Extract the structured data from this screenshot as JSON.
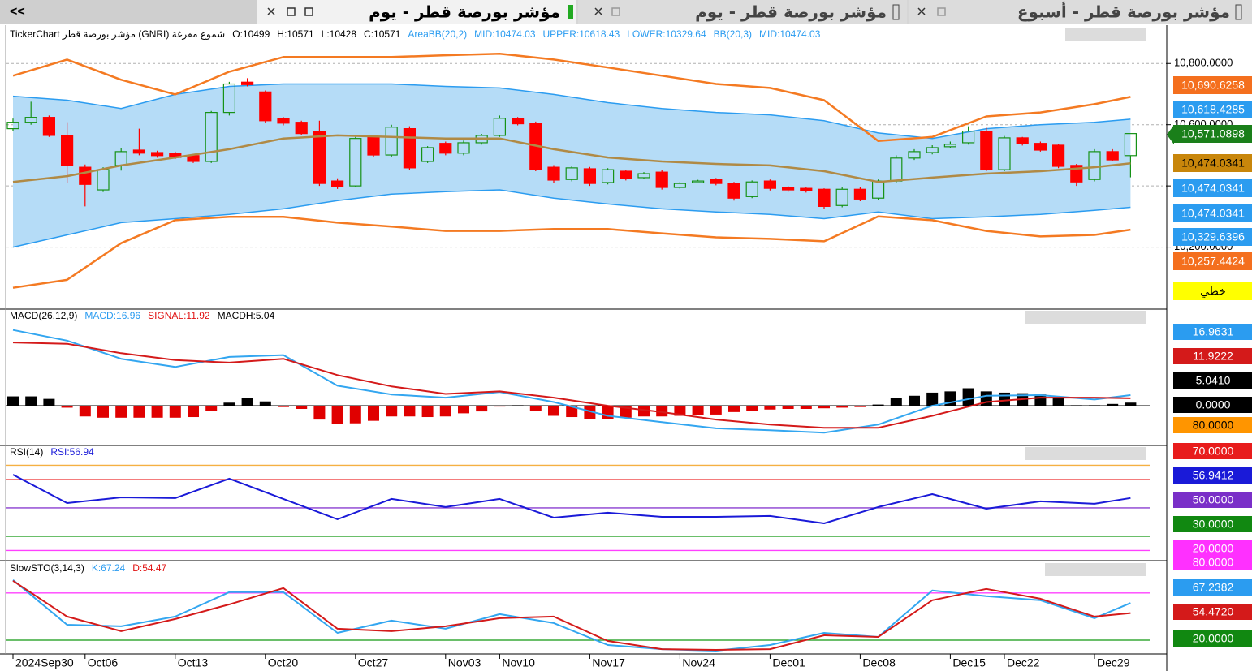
{
  "tabs": [
    "<<",
    "مؤشر بورصة قطر - يوم",
    "مؤشر بورصة قطر - يوم",
    "مؤشر بورصة قطر - أسبوع"
  ],
  "chart_data": [
    {
      "type": "candlestick",
      "legend": [
        {
          "text": "TickerChart مؤشر بورصة قطر (GNRI)  شموع مفرغة",
          "color": "#000000"
        },
        {
          "text": "O:10499",
          "color": "#000000"
        },
        {
          "text": "H:10571",
          "color": "#000000"
        },
        {
          "text": "L:10428",
          "color": "#000000"
        },
        {
          "text": "C:10571",
          "color": "#000000"
        },
        {
          "text": "AreaBB(20,2)",
          "color": "#2b9cf0"
        },
        {
          "text": "MID:10474.03",
          "color": "#2b9cf0"
        },
        {
          "text": "UPPER:10618.43",
          "color": "#2b9cf0"
        },
        {
          "text": "LOWER:10329.64",
          "color": "#2b9cf0"
        },
        {
          "text": "BB(20,3)",
          "color": "#2b9cf0"
        },
        {
          "text": "MID:10474.03",
          "color": "#2b9cf0"
        }
      ],
      "categories": [
        "2024Sep30",
        null,
        null,
        null,
        "Oct06",
        null,
        null,
        null,
        null,
        "Oct13",
        null,
        null,
        null,
        null,
        "Oct20",
        null,
        null,
        null,
        null,
        "Oct27",
        null,
        null,
        null,
        null,
        "Nov03",
        null,
        null,
        "Nov10",
        null,
        null,
        null,
        null,
        "Nov17",
        null,
        null,
        null,
        null,
        "Nov24",
        null,
        null,
        null,
        null,
        "Dec01",
        null,
        null,
        null,
        null,
        "Dec08",
        null,
        null,
        null,
        null,
        "Dec15",
        null,
        null,
        "Dec22",
        null,
        null,
        null,
        null,
        "Dec29",
        null,
        null
      ],
      "open": [
        10587,
        10608,
        10624,
        10565,
        10461,
        10387,
        10467,
        10517,
        10509,
        10507,
        10499,
        10480,
        10640,
        10739,
        10707,
        10619,
        10608,
        10579,
        10416,
        10400,
        10560,
        10501,
        10587,
        10480,
        10539,
        10507,
        10541,
        10565,
        10621,
        10605,
        10461,
        10421,
        10456,
        10411,
        10448,
        10427,
        10445,
        10395,
        10411,
        10421,
        10408,
        10365,
        10416,
        10395,
        10392,
        10389,
        10336,
        10389,
        10360,
        10416,
        10491,
        10509,
        10528,
        10541,
        10579,
        10453,
        10557,
        10539,
        10533,
        10467,
        10421,
        10512,
        10499
      ],
      "high": [
        10620,
        10675,
        10630,
        10608,
        10470,
        10461,
        10525,
        10587,
        10515,
        10512,
        10505,
        10645,
        10740,
        10752,
        10712,
        10625,
        10613,
        10613,
        10425,
        10560,
        10565,
        10600,
        10595,
        10530,
        10545,
        10548,
        10570,
        10630,
        10625,
        10610,
        10468,
        10465,
        10462,
        10458,
        10453,
        10445,
        10453,
        10413,
        10420,
        10426,
        10413,
        10418,
        10421,
        10400,
        10397,
        10392,
        10395,
        10395,
        10421,
        10500,
        10520,
        10533,
        10545,
        10595,
        10590,
        10563,
        10560,
        10545,
        10537,
        10472,
        10520,
        10520,
        10571
      ],
      "low": [
        10580,
        10600,
        10560,
        10410,
        10333,
        10380,
        10450,
        10500,
        10492,
        10488,
        10475,
        10475,
        10630,
        10725,
        10605,
        10598,
        10565,
        10400,
        10390,
        10395,
        10495,
        10495,
        10452,
        10475,
        10500,
        10500,
        10535,
        10560,
        10598,
        10448,
        10410,
        10415,
        10400,
        10405,
        10418,
        10422,
        10388,
        10390,
        10410,
        10402,
        10352,
        10360,
        10385,
        10380,
        10378,
        10325,
        10330,
        10350,
        10355,
        10410,
        10485,
        10503,
        10525,
        10535,
        10448,
        10448,
        10532,
        10512,
        10458,
        10400,
        10415,
        10480,
        10428
      ],
      "close": [
        10608,
        10624,
        10565,
        10467,
        10405,
        10453,
        10512,
        10507,
        10499,
        10493,
        10480,
        10640,
        10733,
        10731,
        10613,
        10605,
        10571,
        10408,
        10397,
        10555,
        10501,
        10592,
        10459,
        10525,
        10507,
        10541,
        10565,
        10621,
        10603,
        10453,
        10419,
        10459,
        10408,
        10453,
        10424,
        10440,
        10395,
        10408,
        10416,
        10408,
        10360,
        10413,
        10392,
        10387,
        10384,
        10333,
        10389,
        10357,
        10416,
        10491,
        10512,
        10525,
        10536,
        10579,
        10453,
        10557,
        10539,
        10517,
        10464,
        10413,
        10512,
        10485,
        10571
      ],
      "up_color": "#169216",
      "down_color": "#ff0000",
      "x": [
        0,
        3,
        6,
        9,
        12,
        15,
        18,
        21,
        24,
        27,
        30,
        33,
        36,
        39,
        42,
        45,
        48,
        51,
        54,
        57,
        60,
        62
      ],
      "area": {
        "color": "#b5dcf7",
        "line_color": "#2b9cf0",
        "upper": [
          10693,
          10680,
          10653,
          10699,
          10725,
          10733,
          10733,
          10733,
          10725,
          10720,
          10699,
          10672,
          10653,
          10640,
          10632,
          10613,
          10573,
          10555,
          10587,
          10600,
          10608,
          10618
        ],
        "lower": [
          10200,
          10240,
          10280,
          10293,
          10307,
          10325,
          10352,
          10373,
          10381,
          10387,
          10360,
          10341,
          10325,
          10315,
          10307,
          10293,
          10315,
          10293,
          10299,
          10307,
          10320,
          10330
        ]
      },
      "lines": [
        {
          "color": "#f47a22",
          "values": [
            10760,
            10813,
            10747,
            10699,
            10773,
            10821,
            10821,
            10821,
            10827,
            10832,
            10813,
            10787,
            10760,
            10733,
            10720,
            10680,
            10547,
            10560,
            10627,
            10640,
            10667,
            10691
          ]
        },
        {
          "color": "#b08a45",
          "values": [
            10413,
            10432,
            10467,
            10493,
            10520,
            10555,
            10565,
            10560,
            10555,
            10555,
            10520,
            10493,
            10480,
            10472,
            10467,
            10448,
            10413,
            10427,
            10440,
            10448,
            10461,
            10474
          ]
        },
        {
          "color": "#f47a22",
          "values": [
            10067,
            10093,
            10213,
            10288,
            10299,
            10299,
            10280,
            10267,
            10253,
            10253,
            10259,
            10259,
            10245,
            10232,
            10227,
            10219,
            10300,
            10288,
            10253,
            10235,
            10240,
            10257
          ]
        }
      ],
      "ylim": [
        10000,
        10920
      ],
      "yticks": [
        {
          "value": 10200,
          "label": "10,200.0000"
        },
        {
          "value": 10400,
          "label": "10,400.0000"
        },
        {
          "value": 10600,
          "label": "10,600.0000"
        },
        {
          "value": 10800,
          "label": "10,800.0000"
        }
      ],
      "grid": true,
      "tags": [
        {
          "label": "10,690.6258",
          "color": "#f46f1e",
          "text_color": "#ffffff"
        },
        {
          "label": "10,618.4285",
          "color": "#2b9cf0",
          "text_color": "#ffffff"
        },
        {
          "label": "10,571.0898",
          "color": "#1a7f1a",
          "text_color": "#ffffff",
          "pointer": true
        },
        {
          "label": "10,474.0341",
          "color": "#c8860b",
          "text_color": "#000000"
        },
        {
          "label": "10,474.0341",
          "color": "#2b9cf0",
          "text_color": "#ffffff"
        },
        {
          "label": "10,474.0341",
          "color": "#2b9cf0",
          "text_color": "#ffffff"
        },
        {
          "label": "10,329.6396",
          "color": "#2b9cf0",
          "text_color": "#ffffff"
        },
        {
          "label": "10,257.4424",
          "color": "#f46f1e",
          "text_color": "#ffffff"
        },
        {
          "label": "خطي",
          "color": "#ffff00",
          "text_color": "#000000"
        }
      ]
    },
    {
      "type": "line",
      "legend": [
        {
          "text": "MACD(26,12,9)",
          "color": "#000000"
        },
        {
          "text": "MACD:16.96",
          "color": "#2b9cf0"
        },
        {
          "text": "SIGNAL:11.92",
          "color": "#e01010"
        },
        {
          "text": "MACDH:5.04",
          "color": "#000000"
        }
      ],
      "x": [
        0,
        3,
        6,
        9,
        12,
        15,
        18,
        21,
        24,
        27,
        30,
        33,
        36,
        39,
        42,
        45,
        48,
        51,
        54,
        57,
        60,
        62
      ],
      "histogram": {
        "up_color": "#000000",
        "down_color": "#e00000",
        "values": [
          15,
          15,
          11,
          -3,
          -17,
          -19,
          -19,
          -19,
          -19,
          -19,
          -18,
          -8,
          5,
          12,
          7,
          -2,
          -5,
          -22,
          -29,
          -28,
          -24,
          -17,
          -17,
          -18,
          -17,
          -12,
          -9,
          -1,
          1,
          -8,
          -16,
          -18,
          -21,
          -21,
          -19,
          -17,
          -17,
          -16,
          -15,
          -14,
          -10,
          -8,
          -6,
          -5,
          -5,
          -4,
          -3,
          -2,
          2,
          12,
          16,
          21,
          23,
          28,
          23,
          21,
          20,
          18,
          14,
          1,
          1,
          3,
          5.04
        ]
      },
      "lines": [
        {
          "color": "#33a6f0",
          "values": [
            121,
            104,
            75,
            62,
            78,
            81,
            32,
            18,
            13,
            22,
            6,
            -16,
            -26,
            -36,
            -39,
            -43,
            -30,
            0,
            16,
            17,
            10,
            16.96
          ]
        },
        {
          "color": "#d41a1a",
          "values": [
            101,
            99,
            84,
            73,
            69,
            75,
            49,
            31,
            19,
            23,
            13,
            0,
            -10,
            -22,
            -30,
            -35,
            -35,
            -16,
            6,
            13,
            13,
            11.92
          ]
        }
      ],
      "levels": [
        {
          "value": 0,
          "color": "#000000"
        }
      ],
      "ylim": [
        -62,
        153
      ],
      "tags": [
        {
          "label": "16.9631",
          "color": "#2b9cf0",
          "text_color": "#ffffff"
        },
        {
          "label": "11.9222",
          "color": "#d41a1a",
          "text_color": "#ffffff"
        },
        {
          "label": "5.0410",
          "color": "#000000",
          "text_color": "#ffffff"
        },
        {
          "label": "0.0000",
          "color": "#000000",
          "text_color": "#ffffff"
        }
      ]
    },
    {
      "type": "line",
      "legend": [
        {
          "text": "RSI(14)",
          "color": "#000000"
        },
        {
          "text": "RSI:56.94",
          "color": "#1a1ad8"
        }
      ],
      "x": [
        0,
        3,
        6,
        9,
        12,
        15,
        18,
        21,
        24,
        27,
        30,
        33,
        36,
        39,
        42,
        45,
        48,
        51,
        54,
        57,
        60,
        62
      ],
      "lines": [
        {
          "color": "#1a1ad8",
          "values": [
            73.4,
            53.4,
            57.4,
            56.9,
            70.6,
            56.3,
            42,
            56.3,
            50.6,
            56.3,
            43.1,
            46.6,
            43.7,
            43.7,
            44.3,
            39.1,
            50.6,
            59.7,
            49.4,
            54.6,
            52.9,
            56.94
          ]
        }
      ],
      "levels": [
        {
          "value": 80,
          "color": "#f5b042"
        },
        {
          "value": 70,
          "color": "#f05050"
        },
        {
          "value": 50,
          "color": "#8a3fd0"
        },
        {
          "value": 30,
          "color": "#119911"
        },
        {
          "value": 20,
          "color": "#ff40ff"
        }
      ],
      "ylim": [
        13.4,
        93.4
      ],
      "tags": [
        {
          "label": "80.0000",
          "color": "#ff9500",
          "text_color": "#000000"
        },
        {
          "label": "70.0000",
          "color": "#e81c1c",
          "text_color": "#ffffff"
        },
        {
          "label": "56.9412",
          "color": "#1a1ad8",
          "text_color": "#ffffff"
        },
        {
          "label": "50.0000",
          "color": "#7a2fc8",
          "text_color": "#ffffff"
        },
        {
          "label": "30.0000",
          "color": "#118811",
          "text_color": "#ffffff"
        },
        {
          "label": "20.0000",
          "color": "#ff30ff",
          "text_color": "#ffffff"
        }
      ]
    },
    {
      "type": "line",
      "legend": [
        {
          "text": "SlowSTO(3,14,3)",
          "color": "#000000"
        },
        {
          "text": "K:67.24",
          "color": "#2b9cf0"
        },
        {
          "text": "D:54.47",
          "color": "#e01010"
        }
      ],
      "x": [
        0,
        3,
        6,
        9,
        12,
        15,
        18,
        21,
        24,
        27,
        30,
        33,
        36,
        39,
        42,
        45,
        48,
        51,
        54,
        57,
        60,
        62
      ],
      "lines": [
        {
          "color": "#33a6f0",
          "values": [
            96.5,
            39.6,
            37.6,
            50,
            81,
            81,
            29.3,
            44.8,
            34.5,
            53.1,
            41.7,
            13.8,
            8.6,
            6.6,
            13.8,
            29.3,
            24.1,
            83.1,
            75.9,
            70.7,
            47.9,
            67.24
          ]
        },
        {
          "color": "#d41a1a",
          "values": [
            95.5,
            50,
            31.4,
            46.9,
            65.5,
            86.2,
            34.5,
            31.4,
            37.6,
            47.9,
            50,
            19,
            8.6,
            7.6,
            8.6,
            26.2,
            24.1,
            70.7,
            85.2,
            72.7,
            50,
            54.47
          ]
        }
      ],
      "levels": [
        {
          "value": 80,
          "color": "#ff40ff"
        },
        {
          "value": 20,
          "color": "#119911"
        }
      ],
      "ylim": [
        3.5,
        120
      ],
      "tags": [
        {
          "label": "80.0000",
          "color": "#ff30ff",
          "text_color": "#ffffff"
        },
        {
          "label": "67.2382",
          "color": "#2b9cf0",
          "text_color": "#ffffff"
        },
        {
          "label": "54.4720",
          "color": "#d41a1a",
          "text_color": "#ffffff"
        },
        {
          "label": "20.0000",
          "color": "#118811",
          "text_color": "#ffffff"
        }
      ]
    }
  ]
}
